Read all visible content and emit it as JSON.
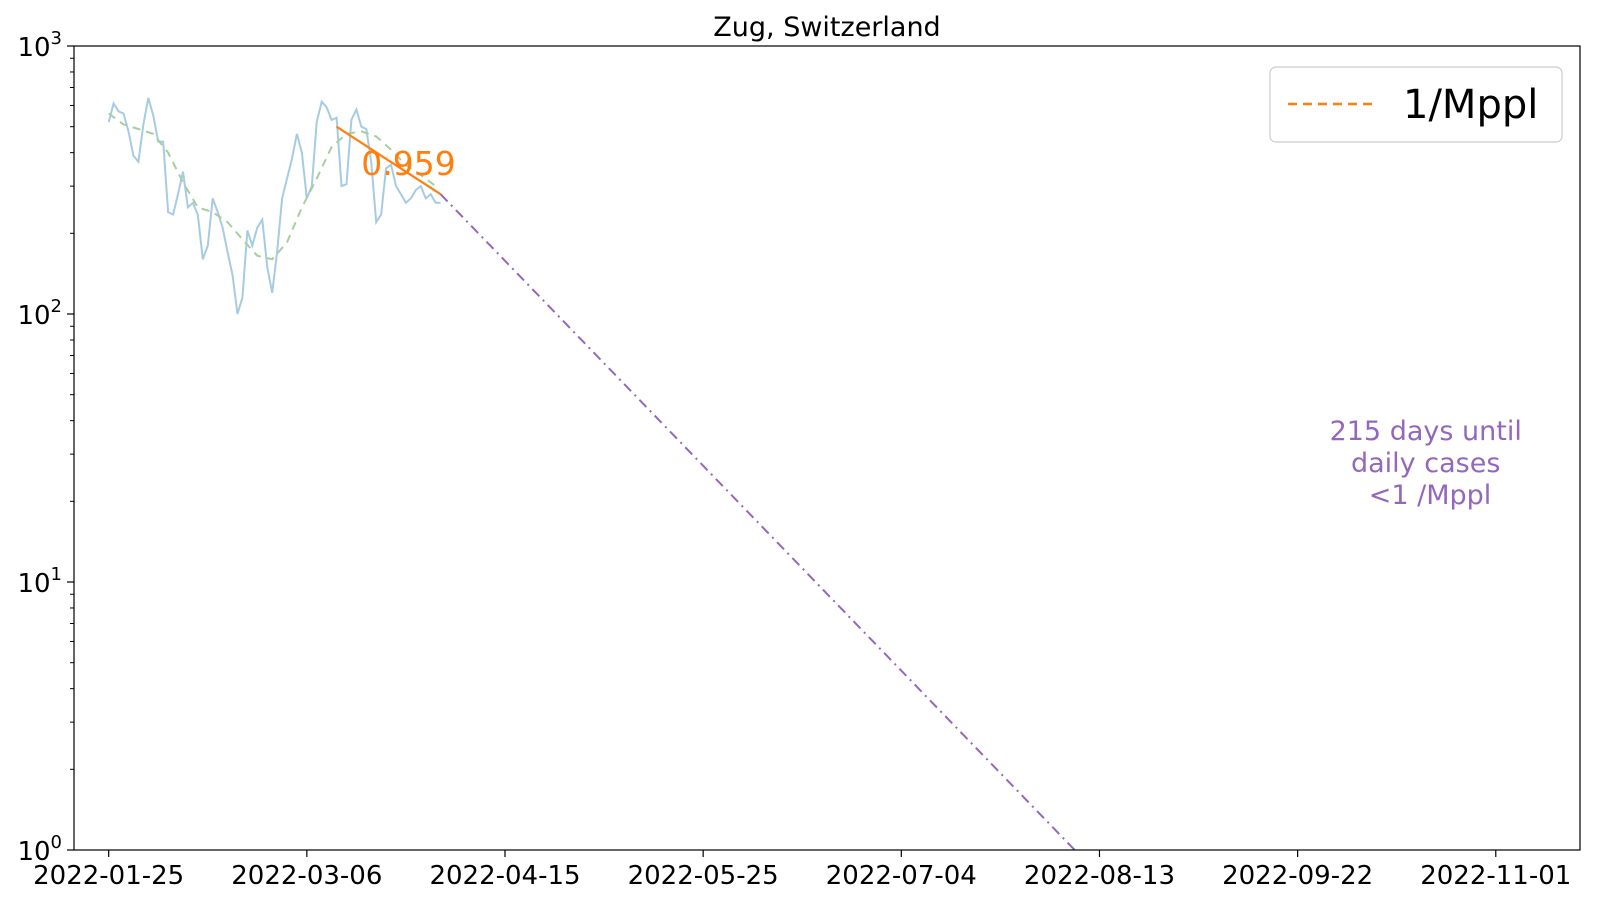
{
  "chart_data": {
    "type": "line",
    "title": "Zug, Switzerland",
    "xlabel": "",
    "ylabel": "",
    "y_scale": "log",
    "ylim": [
      1,
      1000
    ],
    "xlim": [
      "2022-01-18",
      "2022-11-18"
    ],
    "grid": false,
    "x_ticks": [
      "2022-01-25",
      "2022-03-06",
      "2022-04-15",
      "2022-05-25",
      "2022-07-04",
      "2022-08-13",
      "2022-09-22",
      "2022-11-01"
    ],
    "y_ticks": [
      {
        "value": 1,
        "base": "10",
        "exp": "0"
      },
      {
        "value": 10,
        "base": "10",
        "exp": "1"
      },
      {
        "value": 100,
        "base": "10",
        "exp": "2"
      },
      {
        "value": 1000,
        "base": "10",
        "exp": "3"
      }
    ],
    "legend": {
      "placement": "top-right",
      "entries": [
        {
          "label": "1/Mppl",
          "color": "#ff7f0e",
          "style": "dashed"
        }
      ]
    },
    "series": [
      {
        "role": "daily",
        "color": "#a6cbe3",
        "style": "solid",
        "x": [
          "2022-01-25",
          "2022-01-26",
          "2022-01-27",
          "2022-01-28",
          "2022-01-29",
          "2022-01-30",
          "2022-01-31",
          "2022-02-01",
          "2022-02-02",
          "2022-02-03",
          "2022-02-04",
          "2022-02-05",
          "2022-02-06",
          "2022-02-07",
          "2022-02-08",
          "2022-02-09",
          "2022-02-10",
          "2022-02-11",
          "2022-02-12",
          "2022-02-13",
          "2022-02-14",
          "2022-02-15",
          "2022-02-16",
          "2022-02-17",
          "2022-02-18",
          "2022-02-19",
          "2022-02-20",
          "2022-02-21",
          "2022-02-22",
          "2022-02-23",
          "2022-02-24",
          "2022-02-25",
          "2022-02-26",
          "2022-02-27",
          "2022-02-28",
          "2022-03-01",
          "2022-03-02",
          "2022-03-03",
          "2022-03-04",
          "2022-03-05",
          "2022-03-06",
          "2022-03-07",
          "2022-03-08",
          "2022-03-09",
          "2022-03-10",
          "2022-03-11",
          "2022-03-12",
          "2022-03-13",
          "2022-03-14",
          "2022-03-15",
          "2022-03-16",
          "2022-03-17",
          "2022-03-18",
          "2022-03-19",
          "2022-03-20",
          "2022-03-21",
          "2022-03-22",
          "2022-03-23",
          "2022-03-24",
          "2022-03-25",
          "2022-03-26",
          "2022-03-27",
          "2022-03-28",
          "2022-03-29",
          "2022-03-30",
          "2022-03-31",
          "2022-04-01",
          "2022-04-02"
        ],
        "y": [
          520,
          610,
          570,
          560,
          480,
          390,
          370,
          510,
          640,
          550,
          440,
          440,
          240,
          235,
          280,
          340,
          250,
          260,
          235,
          160,
          180,
          270,
          240,
          210,
          170,
          140,
          100,
          115,
          205,
          180,
          210,
          225,
          150,
          120,
          170,
          270,
          320,
          380,
          470,
          400,
          270,
          300,
          520,
          620,
          590,
          530,
          540,
          300,
          305,
          530,
          580,
          500,
          490,
          370,
          220,
          235,
          350,
          360,
          300,
          280,
          260,
          270,
          290,
          300,
          270,
          280,
          260,
          260
        ]
      },
      {
        "role": "smoothed",
        "color": "#a7cf9d",
        "style": "dashed",
        "x": [
          "2022-01-25",
          "2022-01-28",
          "2022-01-31",
          "2022-02-03",
          "2022-02-06",
          "2022-02-09",
          "2022-02-12",
          "2022-02-15",
          "2022-02-18",
          "2022-02-21",
          "2022-02-24",
          "2022-02-27",
          "2022-03-02",
          "2022-03-05",
          "2022-03-08",
          "2022-03-11",
          "2022-03-14",
          "2022-03-17",
          "2022-03-20",
          "2022-03-23",
          "2022-03-26",
          "2022-03-29",
          "2022-04-01"
        ],
        "y": [
          560,
          510,
          490,
          470,
          400,
          310,
          250,
          240,
          220,
          190,
          165,
          160,
          185,
          250,
          320,
          420,
          470,
          480,
          460,
          410,
          360,
          330,
          300
        ]
      },
      {
        "role": "fit",
        "color": "#ff7f0e",
        "style": "solid",
        "x": [
          "2022-03-12",
          "2022-04-02"
        ],
        "y": [
          500,
          280
        ]
      },
      {
        "role": "projection",
        "color": "#9467bd",
        "style": "dashdot",
        "x": [
          "2022-04-02",
          "2022-08-08"
        ],
        "y": [
          280,
          1
        ]
      }
    ],
    "annotations": [
      {
        "text": "0.959",
        "x": "2022-03-17",
        "y": 360,
        "color": "#ff7f0e"
      },
      {
        "lines": [
          "215 days until",
          "daily cases",
          "<1 /Mppl"
        ],
        "color": "#9467bd",
        "position": "right"
      }
    ]
  }
}
